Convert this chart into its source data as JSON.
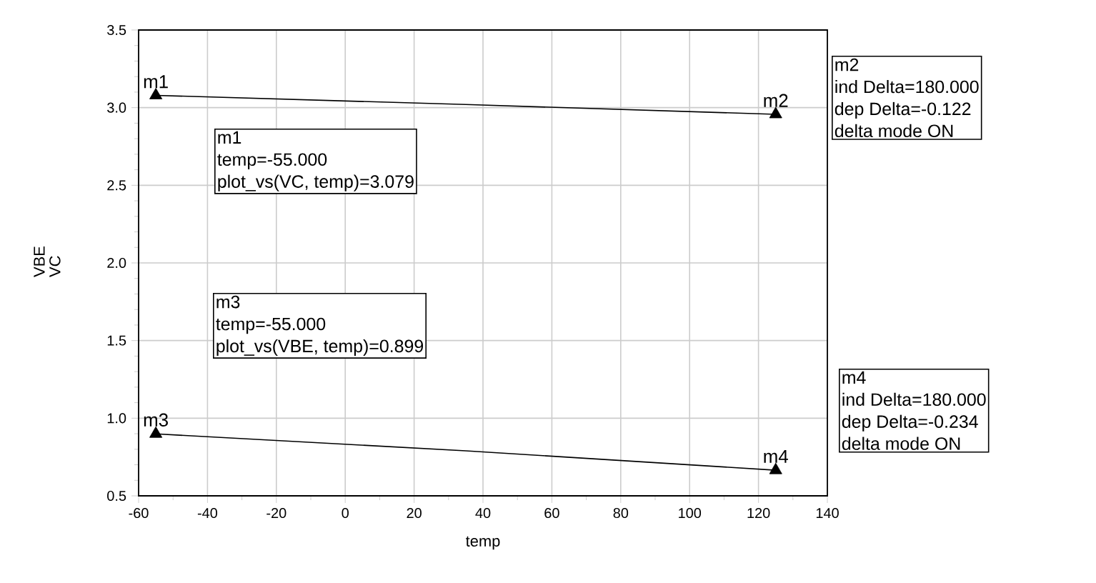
{
  "chart_data": {
    "type": "line",
    "xlabel": "temp",
    "ylabel": "VBE VC",
    "grid": true,
    "xlim": [
      -60,
      140
    ],
    "xticks": [
      -60,
      -40,
      -20,
      0,
      20,
      40,
      60,
      80,
      100,
      120,
      140
    ],
    "ylim": [
      0.5,
      3.5
    ],
    "yticks": [
      0.5,
      {
        "value": 1,
        "label": "1.0"
      },
      1.5,
      {
        "value": 2,
        "label": "2.0"
      },
      2.5,
      {
        "value": 3,
        "label": "3.0"
      },
      3.5
    ],
    "series": [
      {
        "color": "#000000",
        "x": [
          -55,
          35,
          125
        ],
        "values": [
          0.899,
          0.79,
          0.665
        ]
      },
      {
        "color": "#000000",
        "x": [
          -55,
          35,
          125
        ],
        "values": [
          3.079,
          3.02,
          2.957
        ]
      },
      {
        "name": "m1",
        "type": "scatter",
        "marker": "triangle",
        "color": "#000000",
        "x": [
          -55
        ],
        "values": [
          3.079
        ]
      },
      {
        "name": "m2",
        "type": "scatter",
        "marker": "triangle",
        "color": "#000000",
        "x": [
          125
        ],
        "values": [
          2.957
        ]
      },
      {
        "name": "m3",
        "type": "scatter",
        "marker": "triangle",
        "color": "#000000",
        "x": [
          -55
        ],
        "values": [
          0.899
        ]
      },
      {
        "name": "m4",
        "type": "scatter",
        "marker": "triangle",
        "color": "#000000",
        "x": [
          125
        ],
        "values": [
          0.665
        ]
      }
    ],
    "annotations": [
      "m1",
      "temp=-55.000",
      "plot_vs(VC, temp)=3.079",
      "m2",
      "ind Delta=180.000",
      "dep Delta=-0.122",
      "delta mode ON",
      "m3",
      "temp=-55.000",
      "plot_vs(VBE, temp)=0.899",
      "m4",
      "ind Delta=180.000",
      "dep Delta=-0.234",
      "delta mode ON"
    ]
  }
}
